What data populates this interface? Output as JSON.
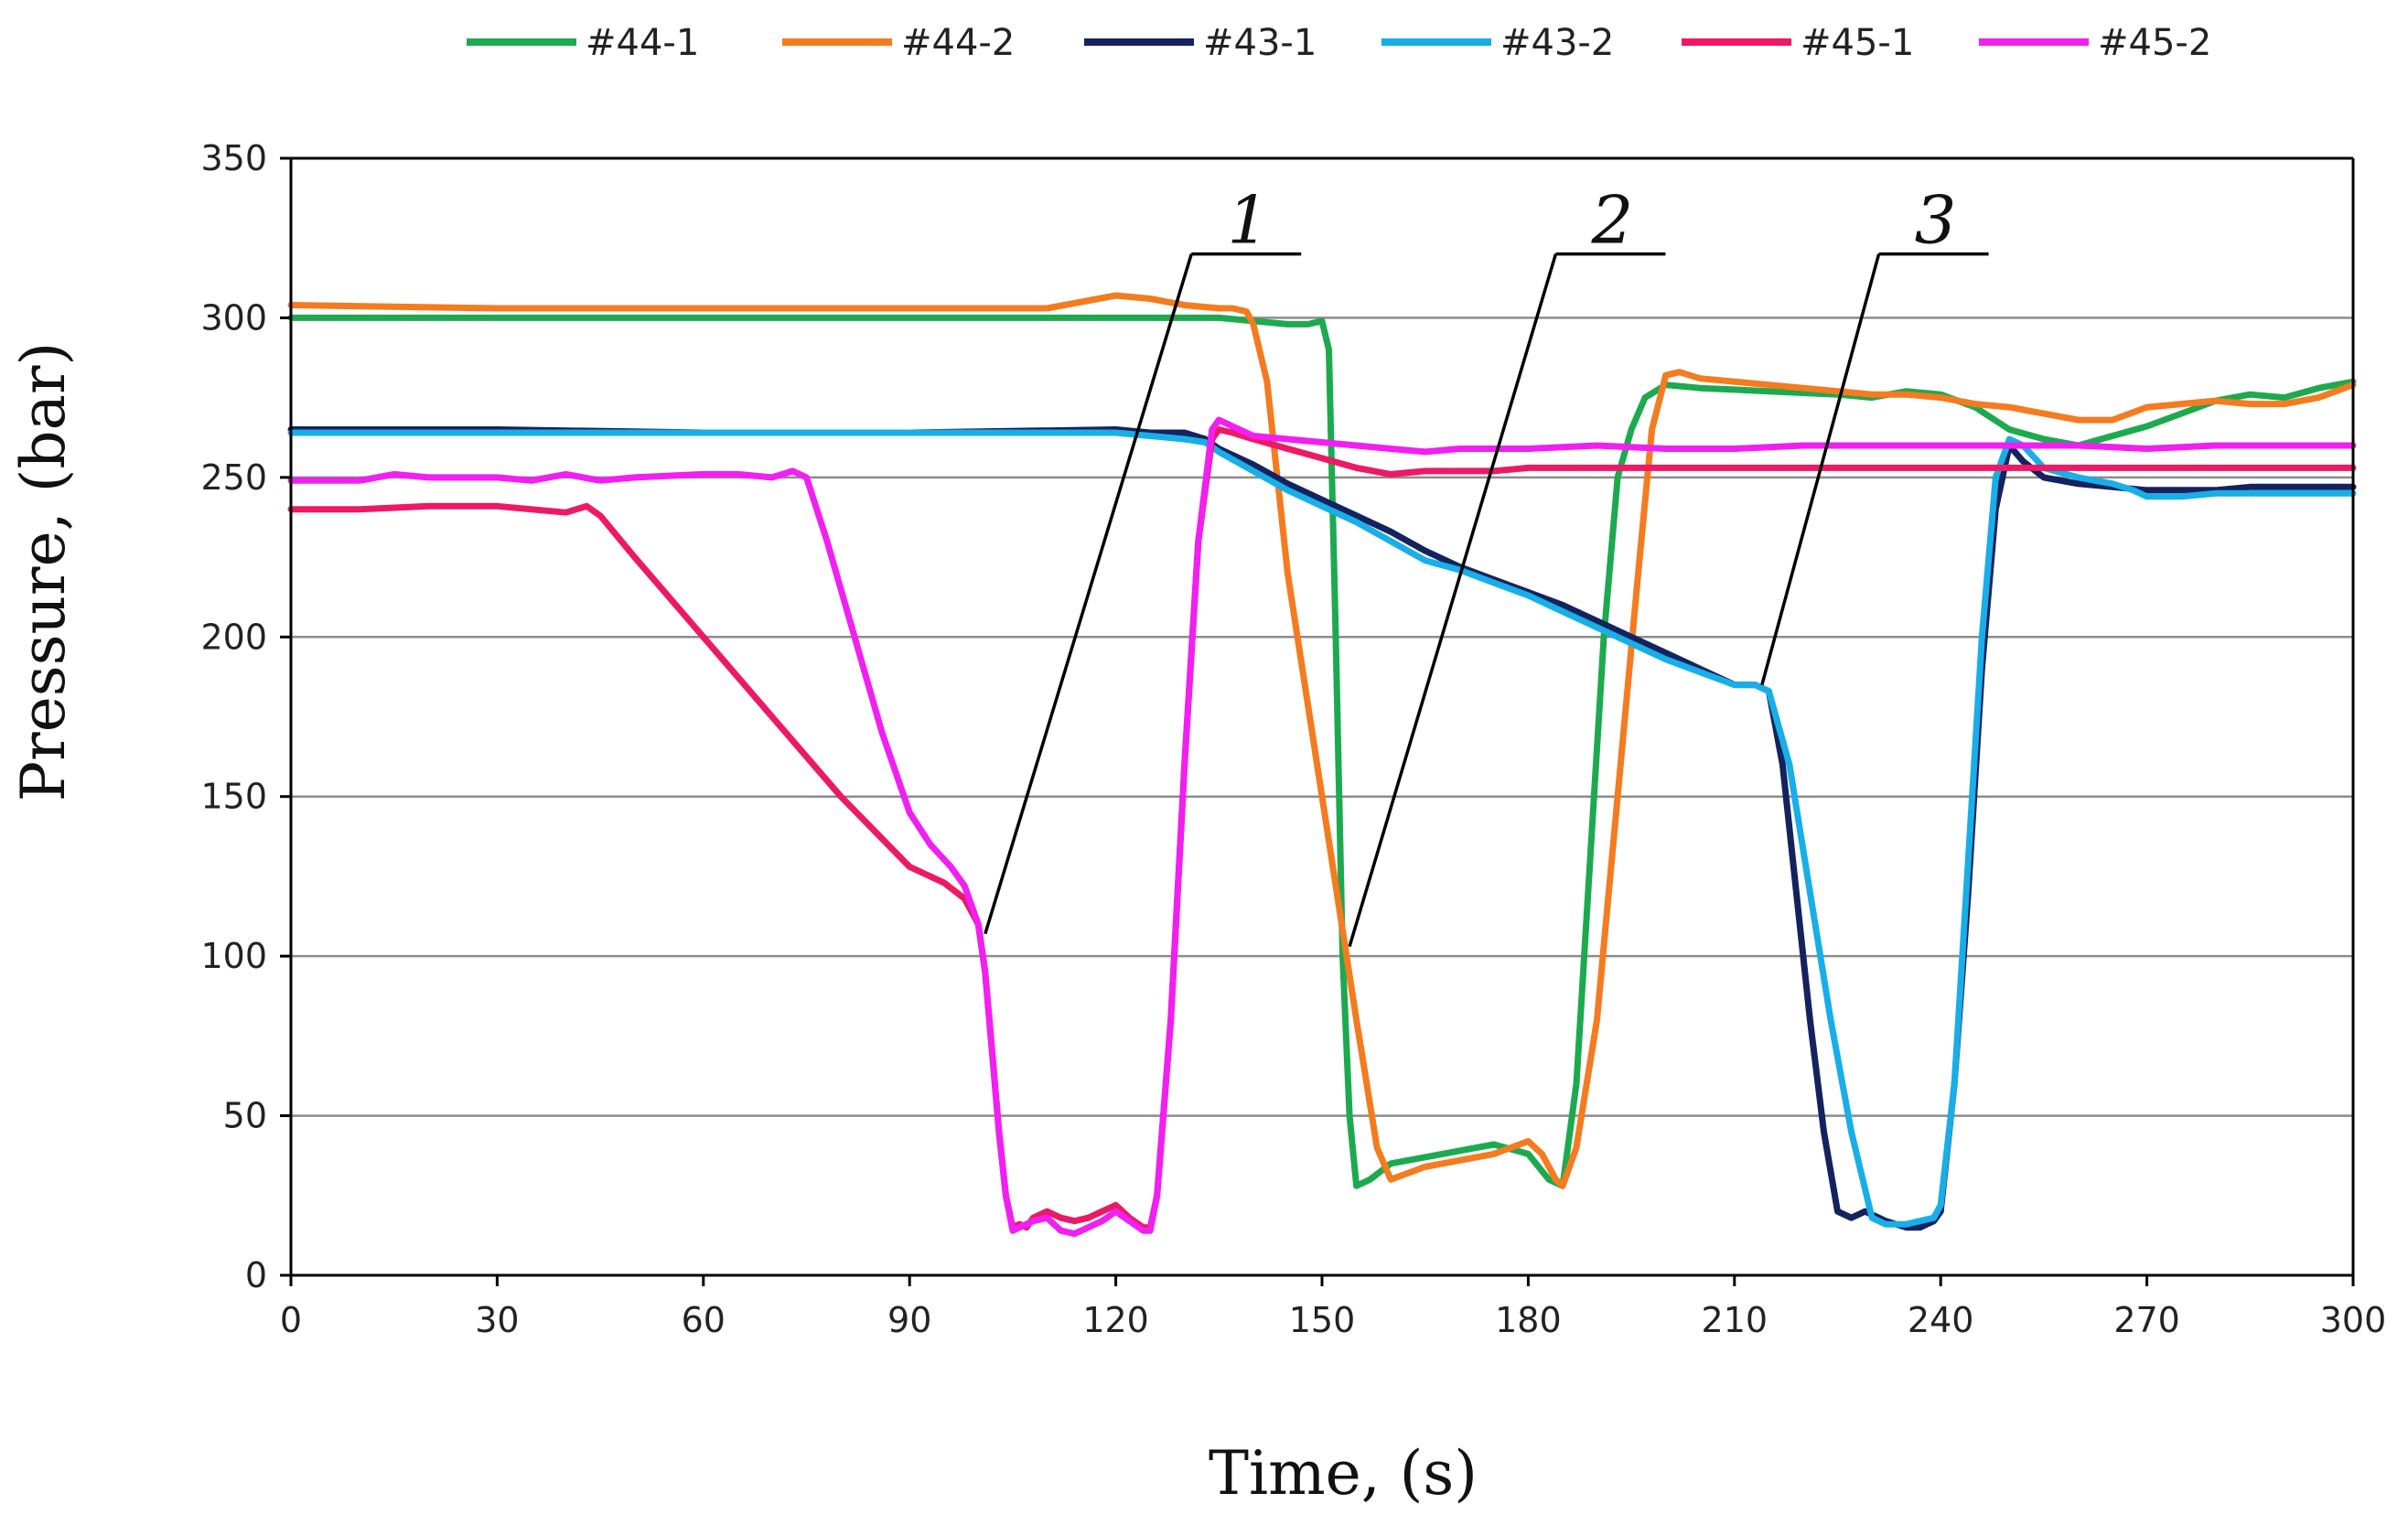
{
  "chart_data": {
    "type": "line",
    "title": "",
    "xlabel": "Time, (s)",
    "ylabel": "Pressure, (bar)",
    "xlim": [
      0,
      300
    ],
    "ylim": [
      0,
      350
    ],
    "xticks": [
      0,
      30,
      60,
      90,
      120,
      150,
      180,
      210,
      240,
      270,
      300
    ],
    "yticks": [
      0,
      50,
      100,
      150,
      200,
      250,
      300,
      350
    ],
    "grid": "horizontal",
    "legend_position": "top",
    "series": [
      {
        "name": "#44-1",
        "color": "#1daa4f",
        "x": [
          0,
          30,
          60,
          90,
          120,
          135,
          140,
          145,
          148,
          150,
          151,
          152,
          153,
          154,
          155,
          157,
          160,
          165,
          170,
          175,
          180,
          183,
          185,
          187,
          189,
          191,
          193,
          195,
          197,
          200,
          205,
          215,
          225,
          230,
          235,
          240,
          245,
          250,
          255,
          260,
          265,
          270,
          275,
          280,
          285,
          290,
          295,
          300
        ],
        "y": [
          300,
          300,
          300,
          300,
          300,
          300,
          299,
          298,
          298,
          299,
          290,
          200,
          100,
          50,
          28,
          30,
          35,
          37,
          39,
          41,
          38,
          30,
          28,
          60,
          130,
          200,
          250,
          265,
          275,
          279,
          278,
          277,
          276,
          275,
          277,
          276,
          272,
          265,
          262,
          260,
          263,
          266,
          270,
          274,
          276,
          275,
          278,
          280
        ]
      },
      {
        "name": "#44-2",
        "color": "#f47b20",
        "x": [
          0,
          30,
          60,
          90,
          110,
          115,
          120,
          125,
          130,
          135,
          137,
          139,
          140,
          142,
          145,
          150,
          155,
          158,
          160,
          165,
          170,
          175,
          180,
          182,
          184,
          185,
          187,
          190,
          193,
          196,
          198,
          200,
          202,
          205,
          215,
          225,
          230,
          235,
          240,
          245,
          250,
          255,
          260,
          265,
          270,
          275,
          280,
          285,
          290,
          295,
          300
        ],
        "y": [
          304,
          303,
          303,
          303,
          303,
          305,
          307,
          306,
          304,
          303,
          303,
          302,
          298,
          280,
          220,
          150,
          80,
          40,
          30,
          34,
          36,
          38,
          42,
          38,
          30,
          28,
          40,
          80,
          150,
          220,
          265,
          282,
          283,
          281,
          279,
          277,
          276,
          276,
          275,
          273,
          272,
          270,
          268,
          268,
          272,
          273,
          274,
          273,
          273,
          275,
          279
        ]
      },
      {
        "name": "#43-1",
        "color": "#14225e",
        "x": [
          0,
          30,
          60,
          90,
          120,
          125,
          130,
          133,
          135,
          140,
          145,
          150,
          155,
          160,
          165,
          170,
          175,
          180,
          185,
          190,
          195,
          200,
          205,
          210,
          213,
          215,
          217,
          219,
          221,
          223,
          225,
          227,
          229,
          232,
          235,
          237,
          239,
          240,
          242,
          244,
          246,
          248,
          250,
          252,
          255,
          260,
          265,
          270,
          275,
          280,
          285,
          290,
          295,
          300
        ],
        "y": [
          265,
          265,
          264,
          264,
          265,
          264,
          264,
          262,
          259,
          254,
          248,
          243,
          238,
          233,
          227,
          222,
          218,
          214,
          210,
          205,
          200,
          195,
          190,
          185,
          185,
          183,
          160,
          120,
          80,
          45,
          20,
          18,
          20,
          17,
          15,
          15,
          17,
          20,
          60,
          120,
          190,
          240,
          260,
          255,
          250,
          248,
          247,
          246,
          246,
          246,
          247,
          247,
          247,
          247
        ]
      },
      {
        "name": "#43-2",
        "color": "#18aee8",
        "x": [
          0,
          30,
          60,
          90,
          120,
          125,
          130,
          133,
          135,
          140,
          145,
          150,
          155,
          160,
          165,
          170,
          175,
          180,
          185,
          190,
          195,
          200,
          205,
          210,
          213,
          215,
          218,
          221,
          224,
          227,
          230,
          232,
          235,
          237,
          239,
          240,
          242,
          244,
          246,
          248,
          250,
          252,
          255,
          260,
          265,
          268,
          270,
          275,
          280,
          285,
          290,
          295,
          300
        ],
        "y": [
          264,
          264,
          264,
          264,
          264,
          263,
          262,
          261,
          258,
          252,
          246,
          241,
          236,
          230,
          224,
          221,
          217,
          213,
          208,
          203,
          198,
          193,
          189,
          185,
          185,
          183,
          160,
          120,
          80,
          45,
          18,
          16,
          16,
          17,
          18,
          22,
          60,
          130,
          200,
          250,
          262,
          260,
          253,
          250,
          248,
          246,
          244,
          244,
          245,
          245,
          245,
          245,
          245
        ]
      },
      {
        "name": "#45-1",
        "color": "#ec1a66",
        "x": [
          0,
          10,
          20,
          30,
          40,
          43,
          45,
          50,
          60,
          70,
          80,
          90,
          95,
          98,
          100,
          101,
          102,
          103,
          104,
          105,
          106,
          107,
          108,
          110,
          112,
          114,
          116,
          118,
          120,
          122,
          124,
          125,
          126,
          128,
          130,
          132,
          134,
          135,
          137,
          140,
          145,
          150,
          155,
          160,
          165,
          170,
          175,
          180,
          190,
          200,
          210,
          220,
          230,
          240,
          250,
          260,
          270,
          280,
          290,
          300
        ],
        "y": [
          240,
          240,
          241,
          241,
          239,
          241,
          238,
          225,
          200,
          175,
          150,
          128,
          123,
          118,
          110,
          95,
          70,
          45,
          25,
          15,
          16,
          15,
          18,
          20,
          18,
          17,
          18,
          20,
          22,
          18,
          15,
          15,
          25,
          80,
          160,
          230,
          262,
          265,
          264,
          262,
          259,
          256,
          253,
          251,
          252,
          252,
          252,
          253,
          253,
          253,
          253,
          253,
          253,
          253,
          253,
          253,
          253,
          253,
          253,
          253
        ]
      },
      {
        "name": "#45-2",
        "color": "#f11ff1",
        "x": [
          0,
          10,
          15,
          20,
          30,
          35,
          40,
          45,
          50,
          60,
          65,
          70,
          73,
          75,
          78,
          82,
          86,
          90,
          93,
          96,
          98,
          100,
          101,
          102,
          103,
          104,
          105,
          106,
          108,
          110,
          112,
          114,
          116,
          118,
          120,
          122,
          124,
          125,
          126,
          128,
          130,
          132,
          134,
          135,
          137,
          140,
          145,
          150,
          155,
          160,
          165,
          170,
          180,
          190,
          200,
          210,
          220,
          230,
          240,
          250,
          260,
          270,
          280,
          290,
          300
        ],
        "y": [
          249,
          249,
          251,
          250,
          250,
          249,
          251,
          249,
          250,
          251,
          251,
          250,
          252,
          250,
          230,
          200,
          170,
          145,
          135,
          128,
          122,
          110,
          95,
          70,
          45,
          25,
          14,
          15,
          17,
          18,
          14,
          13,
          15,
          17,
          20,
          17,
          14,
          14,
          25,
          80,
          160,
          230,
          265,
          268,
          266,
          263,
          262,
          261,
          260,
          259,
          258,
          259,
          259,
          260,
          259,
          259,
          260,
          260,
          260,
          260,
          260,
          259,
          260,
          260,
          260
        ]
      }
    ],
    "annotations": [
      {
        "label": "1",
        "point": [
          101,
          107
        ],
        "text_at": [
          131,
          320
        ]
      },
      {
        "label": "2",
        "point": [
          154,
          103
        ],
        "text_at": [
          184,
          320
        ]
      },
      {
        "label": "3",
        "point": [
          214,
          185
        ],
        "text_at": [
          231,
          320
        ]
      }
    ]
  }
}
